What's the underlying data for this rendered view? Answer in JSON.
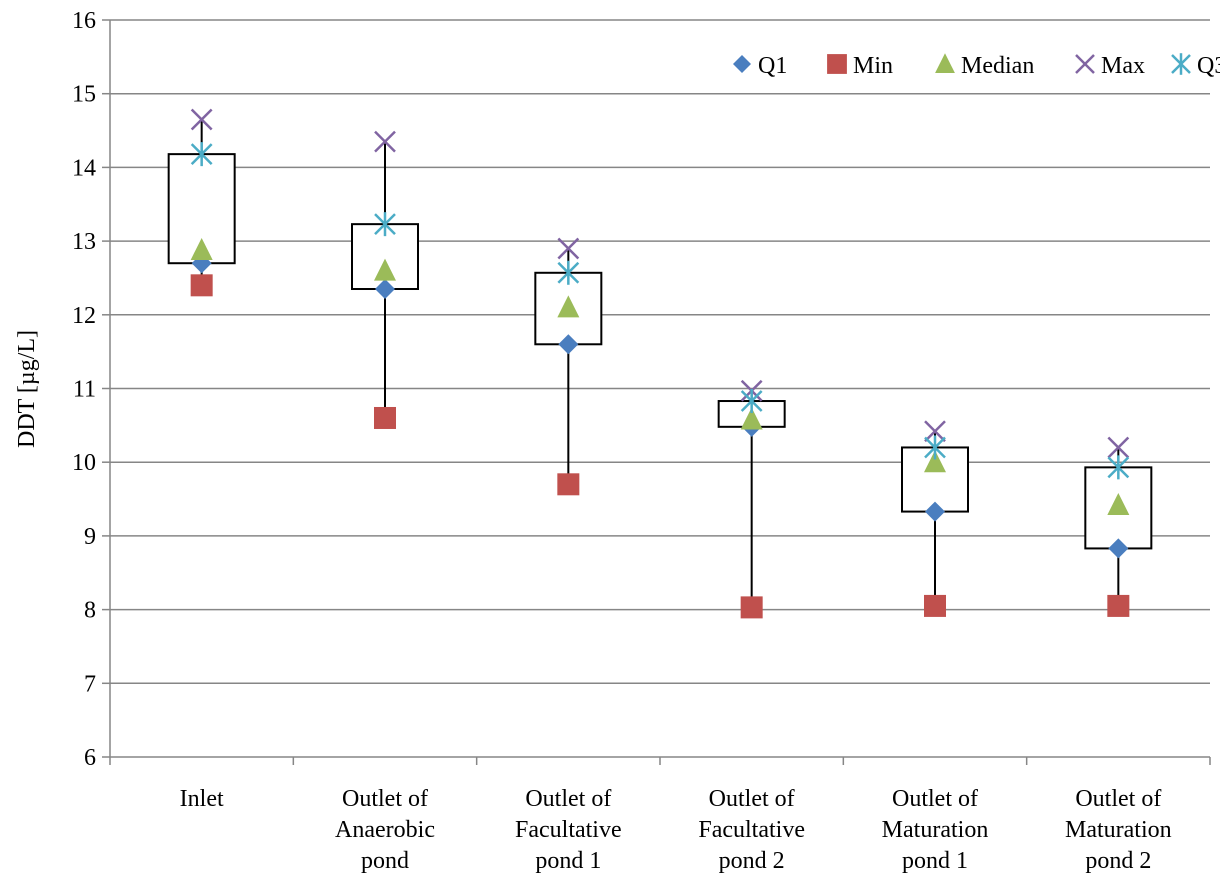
{
  "chart_data": {
    "type": "box",
    "ylabel": "DDT [µg/L]",
    "ylim": [
      6,
      16
    ],
    "yticks": [
      6,
      7,
      8,
      9,
      10,
      11,
      12,
      13,
      14,
      15,
      16
    ],
    "grid": "horizontal",
    "legend_position": "top-right",
    "categories": [
      [
        "Inlet"
      ],
      [
        "Outlet of",
        "Anaerobic",
        "pond"
      ],
      [
        "Outlet of",
        "Facultative",
        "pond 1"
      ],
      [
        "Outlet of",
        "Facultative",
        "pond 2"
      ],
      [
        "Outlet of",
        "Maturation",
        "pond 1"
      ],
      [
        "Outlet of",
        "Maturation",
        "pond 2"
      ]
    ],
    "series": [
      {
        "name": "Q1",
        "marker": "diamond",
        "color": "#4a7ebf",
        "values": [
          12.7,
          12.35,
          11.6,
          10.48,
          9.33,
          8.83
        ]
      },
      {
        "name": "Min",
        "marker": "square",
        "color": "#c0504d",
        "values": [
          12.4,
          10.6,
          9.7,
          8.03,
          8.05,
          8.05
        ]
      },
      {
        "name": "Median",
        "marker": "triangle",
        "color": "#9bbb59",
        "values": [
          12.88,
          12.6,
          12.1,
          10.58,
          10.0,
          9.42
        ]
      },
      {
        "name": "Max",
        "marker": "x",
        "color": "#8064a2",
        "values": [
          14.65,
          14.35,
          12.9,
          10.97,
          10.42,
          10.2
        ]
      },
      {
        "name": "Q3",
        "marker": "asterisk",
        "color": "#4bacc6",
        "values": [
          14.18,
          13.23,
          12.57,
          10.83,
          10.2,
          9.93
        ]
      }
    ]
  }
}
